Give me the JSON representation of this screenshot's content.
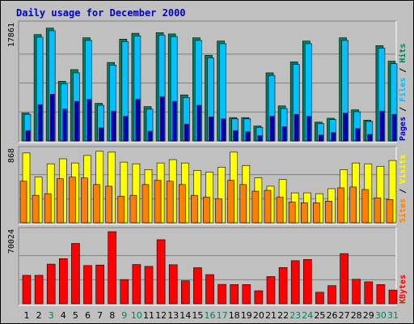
{
  "chart_data": [
    {
      "type": "bar",
      "title": "Daily usage for December 2000",
      "categories": [
        "1",
        "2",
        "3",
        "4",
        "5",
        "6",
        "7",
        "8",
        "9",
        "10",
        "11",
        "12",
        "13",
        "14",
        "15",
        "16",
        "17",
        "18",
        "19",
        "20",
        "21",
        "22",
        "23",
        "24",
        "25",
        "26",
        "27",
        "28",
        "29",
        "30",
        "31"
      ],
      "weekend_days": [
        "3",
        "9",
        "10",
        "16",
        "17",
        "23",
        "24",
        "30",
        "31"
      ],
      "ylim": [
        0,
        17861
      ],
      "ymax_label": "17861",
      "right_label": {
        "parts": [
          "Pages",
          "Files",
          "Hits"
        ],
        "separator": " / "
      },
      "series": [
        {
          "name": "Hits",
          "color": "#00805c",
          "values": [
            4300,
            16400,
            17400,
            9200,
            11000,
            15900,
            5800,
            12100,
            15700,
            16600,
            5300,
            16700,
            16500,
            7100,
            15900,
            13200,
            15400,
            3600,
            3600,
            2300,
            10500,
            5400,
            12200,
            15400,
            2900,
            3500,
            15900,
            4800,
            3200,
            14700,
            12300
          ]
        },
        {
          "name": "Files",
          "color": "#00c0ff",
          "values": [
            4100,
            16000,
            17000,
            8800,
            10500,
            15500,
            5500,
            11700,
            15300,
            16200,
            4900,
            16300,
            16100,
            6700,
            15500,
            12800,
            15000,
            3400,
            3400,
            2100,
            10100,
            5000,
            11800,
            15000,
            2700,
            3300,
            15500,
            4500,
            3000,
            14300,
            11900
          ]
        },
        {
          "name": "Pages",
          "color": "#0000c0",
          "values": [
            1600,
            5600,
            7200,
            4900,
            6100,
            6400,
            2000,
            4600,
            3800,
            6400,
            1500,
            6800,
            6100,
            2600,
            5500,
            3700,
            3400,
            1600,
            1400,
            800,
            3800,
            2200,
            4100,
            3800,
            900,
            1300,
            4300,
            1900,
            1000,
            4600,
            4100
          ]
        }
      ]
    },
    {
      "type": "bar",
      "categories": [
        "1",
        "2",
        "3",
        "4",
        "5",
        "6",
        "7",
        "8",
        "9",
        "10",
        "11",
        "12",
        "13",
        "14",
        "15",
        "16",
        "17",
        "18",
        "19",
        "20",
        "21",
        "22",
        "23",
        "24",
        "25",
        "26",
        "27",
        "28",
        "29",
        "30",
        "31"
      ],
      "ylim": [
        0,
        868
      ],
      "ymax_label": "868",
      "right_label": {
        "parts": [
          "Sites",
          "Visits"
        ],
        "separator": " / "
      },
      "series": [
        {
          "name": "Visits",
          "color": "#ffff00",
          "values": [
            840,
            550,
            710,
            770,
            720,
            810,
            860,
            850,
            730,
            710,
            640,
            720,
            760,
            720,
            630,
            610,
            670,
            850,
            690,
            540,
            440,
            520,
            360,
            360,
            350,
            410,
            640,
            720,
            710,
            680,
            750
          ]
        },
        {
          "name": "Sites",
          "color": "#ff8000",
          "values": [
            500,
            330,
            350,
            530,
            550,
            540,
            460,
            440,
            320,
            330,
            460,
            510,
            500,
            460,
            330,
            310,
            290,
            510,
            460,
            380,
            390,
            310,
            250,
            240,
            240,
            260,
            420,
            430,
            400,
            300,
            280
          ]
        }
      ]
    },
    {
      "type": "bar",
      "categories": [
        "1",
        "2",
        "3",
        "4",
        "5",
        "6",
        "7",
        "8",
        "9",
        "10",
        "11",
        "12",
        "13",
        "14",
        "15",
        "16",
        "17",
        "18",
        "19",
        "20",
        "21",
        "22",
        "23",
        "24",
        "25",
        "26",
        "27",
        "28",
        "29",
        "30",
        "31"
      ],
      "ylim": [
        0,
        70024
      ],
      "ymax_label": "70024",
      "right_label": {
        "parts": [
          "KBytes"
        ],
        "separator": ""
      },
      "series": [
        {
          "name": "KBytes",
          "color": "#ff0000",
          "values": [
            27600,
            27600,
            38500,
            43800,
            58600,
            37100,
            37600,
            70000,
            23500,
            38100,
            36300,
            62200,
            37900,
            22300,
            35000,
            28300,
            18800,
            18600,
            18600,
            12600,
            26400,
            35200,
            41800,
            43000,
            11200,
            17600,
            48700,
            23800,
            21300,
            18600,
            13300
          ]
        }
      ]
    }
  ],
  "colors": {
    "background": "#c0c0c0",
    "panel": "#c0c0c0",
    "gridline": "#808080",
    "title": "#0000c0",
    "weekday_tick": "#000000",
    "weekend_tick": "#00805c"
  }
}
